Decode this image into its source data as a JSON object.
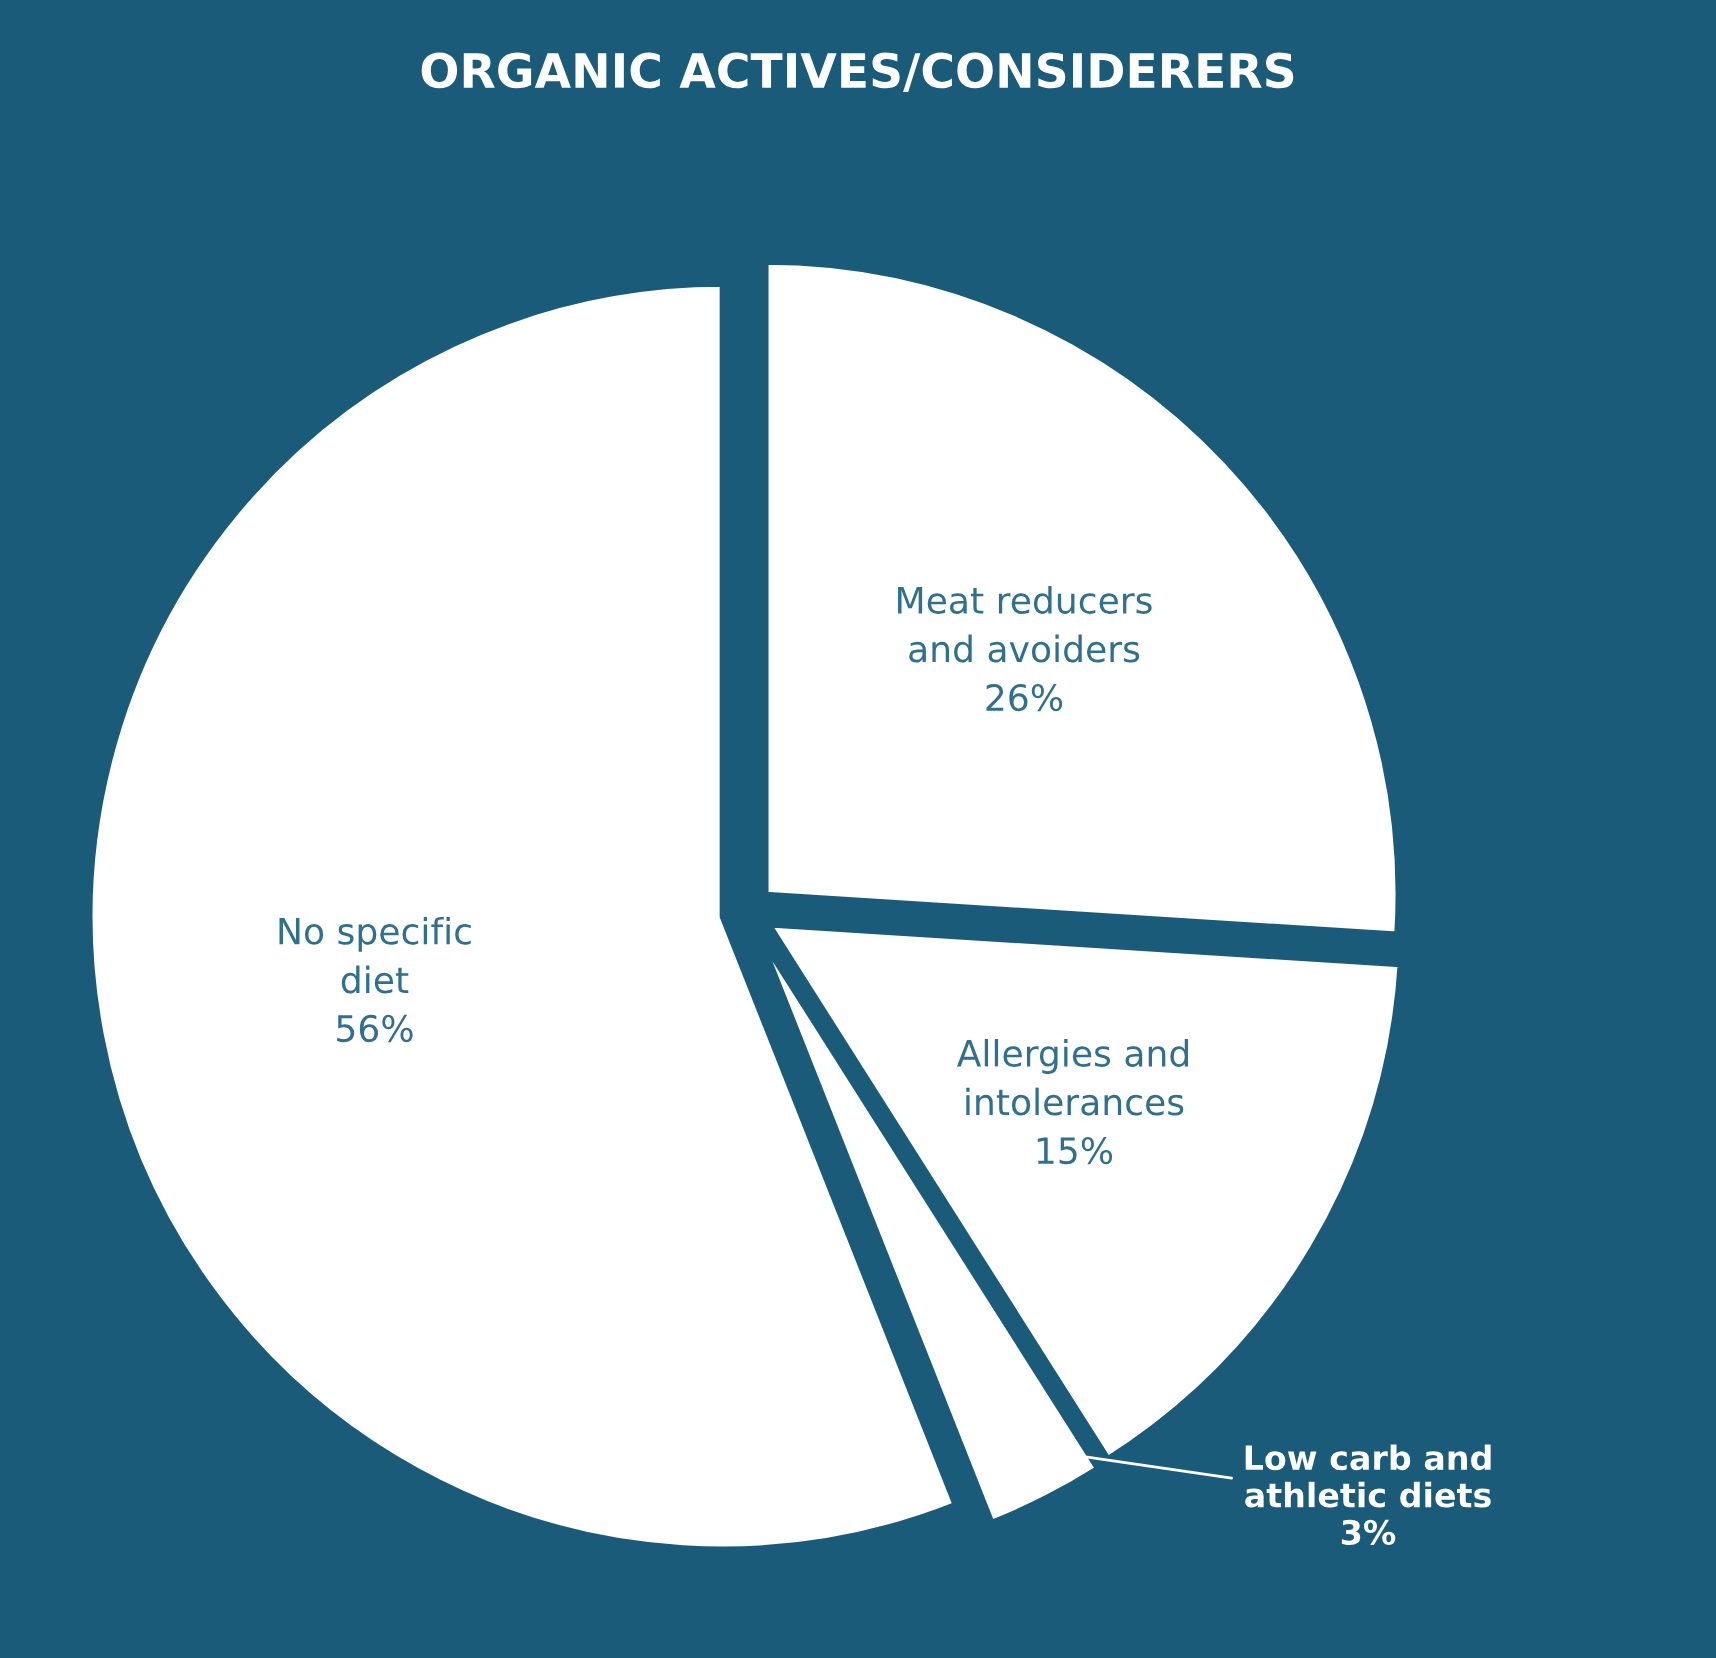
{
  "chart_data": {
    "type": "pie",
    "title": "ORGANIC ACTIVES/CONSIDERERS",
    "categories": [
      "Meat reducers\nand avoiders",
      "Allergies and\nintolerances",
      "Low carb and\nathletic diets",
      "No specific\ndiet"
    ],
    "values": [
      26,
      15,
      3,
      56
    ],
    "colors": [
      "#ffffff",
      "#ffffff",
      "#ffffff",
      "#ffffff"
    ],
    "value_labels": [
      "26%",
      "15%",
      "3%",
      "56%"
    ]
  }
}
